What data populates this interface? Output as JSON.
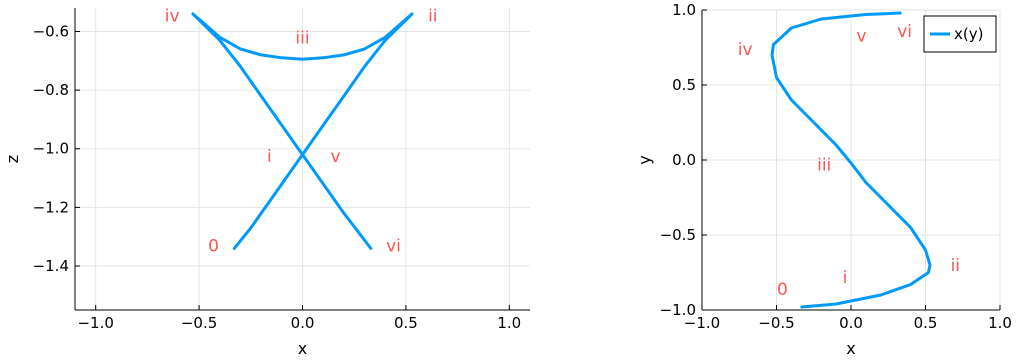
{
  "colors": {
    "series": "#009AFA",
    "annotation": "#FF5555",
    "grid": "#E5E5E5",
    "axis": "#000000"
  },
  "chart_data": [
    {
      "type": "line",
      "xlabel": "x",
      "ylabel": "z",
      "xlim": [
        -1.1,
        1.1
      ],
      "ylim": [
        -1.55,
        -0.52
      ],
      "xticks": [
        -1.0,
        -0.5,
        0.0,
        0.5,
        1.0
      ],
      "xtick_labels": [
        "−1.0",
        "−0.5",
        "0.0",
        "0.5",
        "1.0"
      ],
      "yticks": [
        -1.4,
        -1.2,
        -1.0,
        -0.8,
        -0.6
      ],
      "ytick_labels": [
        "−1.4",
        "−1.2",
        "−1.0",
        "−0.8",
        "−0.6"
      ],
      "grid": true,
      "series": [
        {
          "x": [
            -0.33,
            -0.25,
            -0.15,
            -0.05,
            0.0,
            0.1,
            0.2,
            0.3,
            0.4,
            0.53,
            0.4,
            0.3,
            0.2,
            0.1,
            0.0,
            -0.1,
            -0.2,
            -0.3,
            -0.4,
            -0.53,
            -0.4,
            -0.3,
            -0.2,
            -0.1,
            0.0,
            0.1,
            0.2,
            0.33
          ],
          "y": [
            -1.34,
            -1.27,
            -1.17,
            -1.07,
            -1.02,
            -0.92,
            -0.82,
            -0.72,
            -0.63,
            -0.54,
            -0.62,
            -0.66,
            -0.68,
            -0.69,
            -0.695,
            -0.69,
            -0.68,
            -0.66,
            -0.62,
            -0.54,
            -0.63,
            -0.72,
            -0.82,
            -0.92,
            -1.02,
            -1.12,
            -1.22,
            -1.34
          ]
        }
      ],
      "annotations": [
        {
          "text": "0",
          "x": -0.43,
          "y": -1.33
        },
        {
          "text": "i",
          "x": -0.16,
          "y": -1.025
        },
        {
          "text": "ii",
          "x": 0.63,
          "y": -0.545
        },
        {
          "text": "iii",
          "x": 0.0,
          "y": -0.62
        },
        {
          "text": "iv",
          "x": -0.63,
          "y": -0.545
        },
        {
          "text": "v",
          "x": 0.16,
          "y": -1.025
        },
        {
          "text": "vi",
          "x": 0.44,
          "y": -1.33
        }
      ]
    },
    {
      "type": "line",
      "xlabel": "x",
      "ylabel": "y",
      "xlim": [
        -1.0,
        1.0
      ],
      "ylim": [
        -1.0,
        1.0
      ],
      "xticks": [
        -1.0,
        -0.5,
        0.0,
        0.5,
        1.0
      ],
      "xtick_labels": [
        "−1.0",
        "−0.5",
        "0.0",
        "0.5",
        "1.0"
      ],
      "yticks": [
        -1.0,
        -0.5,
        0.0,
        0.5,
        1.0
      ],
      "ytick_labels": [
        "−1.0",
        "−0.5",
        "0.0",
        "0.5",
        "1.0"
      ],
      "grid": true,
      "legend": {
        "placement": "top-right",
        "entries": [
          "x(y)"
        ]
      },
      "series": [
        {
          "name": "x(y)",
          "x": [
            -0.33,
            -0.1,
            0.2,
            0.4,
            0.52,
            0.53,
            0.5,
            0.4,
            0.25,
            0.1,
            0.0,
            -0.1,
            -0.25,
            -0.4,
            -0.5,
            -0.53,
            -0.52,
            -0.4,
            -0.2,
            0.1,
            0.33
          ],
          "y": [
            -0.98,
            -0.96,
            -0.9,
            -0.83,
            -0.75,
            -0.7,
            -0.6,
            -0.45,
            -0.3,
            -0.15,
            -0.02,
            0.1,
            0.25,
            0.4,
            0.55,
            0.7,
            0.77,
            0.88,
            0.94,
            0.97,
            0.98
          ]
        }
      ],
      "annotations": [
        {
          "text": "0",
          "x": -0.46,
          "y": -0.86
        },
        {
          "text": "i",
          "x": -0.04,
          "y": -0.78
        },
        {
          "text": "ii",
          "x": 0.7,
          "y": -0.7
        },
        {
          "text": "iii",
          "x": -0.18,
          "y": -0.03
        },
        {
          "text": "iv",
          "x": -0.71,
          "y": 0.74
        },
        {
          "text": "v",
          "x": 0.07,
          "y": 0.83
        },
        {
          "text": "vi",
          "x": 0.36,
          "y": 0.86
        }
      ]
    }
  ]
}
